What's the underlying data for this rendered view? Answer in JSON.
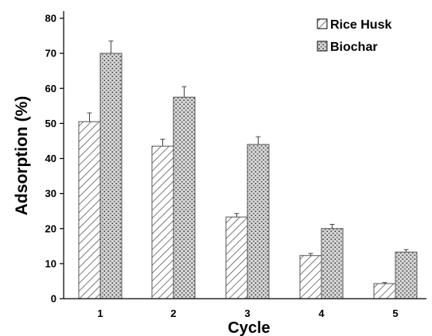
{
  "chart_data": {
    "type": "bar",
    "categories": [
      "1",
      "2",
      "3",
      "4",
      "5"
    ],
    "series": [
      {
        "name": "Rice Husk",
        "values": [
          50.5,
          43.5,
          23.3,
          12.3,
          4.3
        ],
        "errors": [
          2.5,
          2.0,
          1.0,
          0.6,
          0.3
        ],
        "pattern": "diagonal-hatch"
      },
      {
        "name": "Biochar",
        "values": [
          70.0,
          57.5,
          44.0,
          20.0,
          13.3
        ],
        "errors": [
          3.5,
          3.0,
          2.2,
          1.2,
          0.7
        ],
        "pattern": "dots"
      }
    ],
    "title": "",
    "xlabel": "Cycle",
    "ylabel": "Adsorption (%)",
    "ylim": [
      0,
      80
    ],
    "yticks": [
      "0",
      "10",
      "20",
      "30",
      "40",
      "50",
      "60",
      "70",
      "80"
    ],
    "grid": false,
    "legend": "top-right"
  },
  "colors": {
    "axis": "#000000",
    "bar_stroke": "#555555",
    "background": "#ffffff"
  }
}
